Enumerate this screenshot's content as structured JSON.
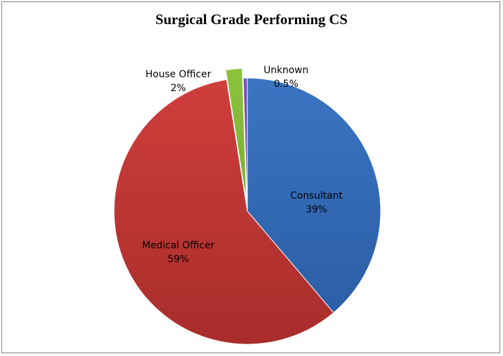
{
  "chart_data": {
    "type": "pie",
    "title": "Surgical Grade Performing CS",
    "slices": [
      {
        "name": "Consultant",
        "value": 39,
        "percent_label": "39%",
        "color": "#3a74c2",
        "color_dark": "#2c5fa6",
        "exploded": false
      },
      {
        "name": "Medical Officer",
        "value": 59,
        "percent_label": "59%",
        "color": "#cf3e3c",
        "color_dark": "#a82d2b",
        "exploded": false
      },
      {
        "name": "House Officer",
        "value": 2,
        "percent_label": "2%",
        "color": "#8cc43e",
        "color_dark": "#79ad31",
        "exploded": true
      },
      {
        "name": "Unknown",
        "value": 0.5,
        "percent_label": "0.5%",
        "color": "#7d53b8",
        "color_dark": "#6a44a0",
        "exploded": false
      }
    ],
    "start_angle_deg": 0,
    "direction": "clockwise",
    "legend": "none",
    "grid": false
  }
}
